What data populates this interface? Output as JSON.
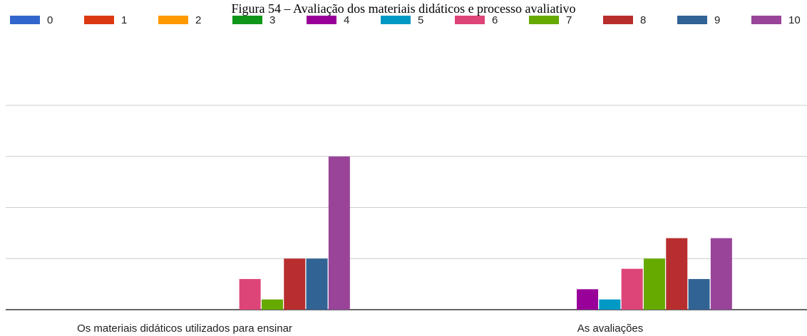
{
  "chart_data": {
    "type": "bar",
    "title": "Figura 54 – Avaliação dos materiais didáticos e processo avaliativo",
    "categories": [
      "Os materiais didáticos utilizados para ensinar",
      "As avaliações"
    ],
    "series": [
      {
        "name": "0",
        "color": "#3366cc",
        "values": [
          0,
          0
        ]
      },
      {
        "name": "1",
        "color": "#dc3912",
        "values": [
          0,
          0
        ]
      },
      {
        "name": "2",
        "color": "#ff9900",
        "values": [
          0,
          0
        ]
      },
      {
        "name": "3",
        "color": "#109618",
        "values": [
          0,
          0
        ]
      },
      {
        "name": "4",
        "color": "#990099",
        "values": [
          0,
          2
        ]
      },
      {
        "name": "5",
        "color": "#0099c6",
        "values": [
          0,
          1
        ]
      },
      {
        "name": "6",
        "color": "#dd4477",
        "values": [
          3,
          4
        ]
      },
      {
        "name": "7",
        "color": "#66aa00",
        "values": [
          1,
          5
        ]
      },
      {
        "name": "8",
        "color": "#b82e2e",
        "values": [
          5,
          7
        ]
      },
      {
        "name": "9",
        "color": "#316395",
        "values": [
          5,
          3
        ]
      },
      {
        "name": "10",
        "color": "#994499",
        "values": [
          15,
          7
        ]
      }
    ],
    "ylim": [
      0,
      20
    ],
    "yticks": [
      0,
      5,
      10,
      15,
      20
    ],
    "grid": true,
    "legend": "top"
  }
}
